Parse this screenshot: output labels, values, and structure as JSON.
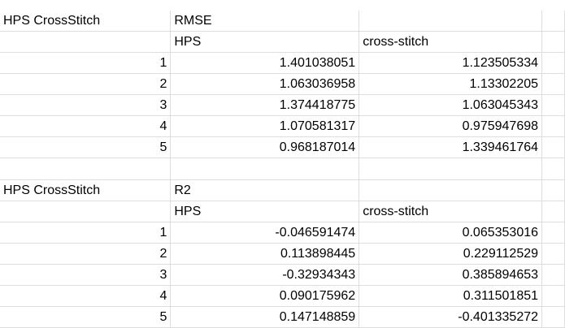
{
  "sections": [
    {
      "label": "HPS CrossStitch",
      "metric": "RMSE",
      "col_hps": "HPS",
      "col_cs": "cross-stitch",
      "rows": [
        {
          "idx": "1",
          "hps": "1.401038051",
          "cs": "1.123505334"
        },
        {
          "idx": "2",
          "hps": "1.063036958",
          "cs": "1.13302205"
        },
        {
          "idx": "3",
          "hps": "1.374418775",
          "cs": "1.063045343"
        },
        {
          "idx": "4",
          "hps": "1.070581317",
          "cs": "0.975947698"
        },
        {
          "idx": "5",
          "hps": "0.968187014",
          "cs": "1.339461764"
        }
      ]
    },
    {
      "label": "HPS CrossStitch",
      "metric": "R2",
      "col_hps": "HPS",
      "col_cs": "cross-stitch",
      "rows": [
        {
          "idx": "1",
          "hps": "-0.046591474",
          "cs": "0.065353016"
        },
        {
          "idx": "2",
          "hps": "0.113898445",
          "cs": "0.229112529"
        },
        {
          "idx": "3",
          "hps": "-0.32934343",
          "cs": "0.385894653"
        },
        {
          "idx": "4",
          "hps": "0.090175962",
          "cs": "0.311501851"
        },
        {
          "idx": "5",
          "hps": "0.147148859",
          "cs": "-0.401335272"
        }
      ]
    }
  ]
}
